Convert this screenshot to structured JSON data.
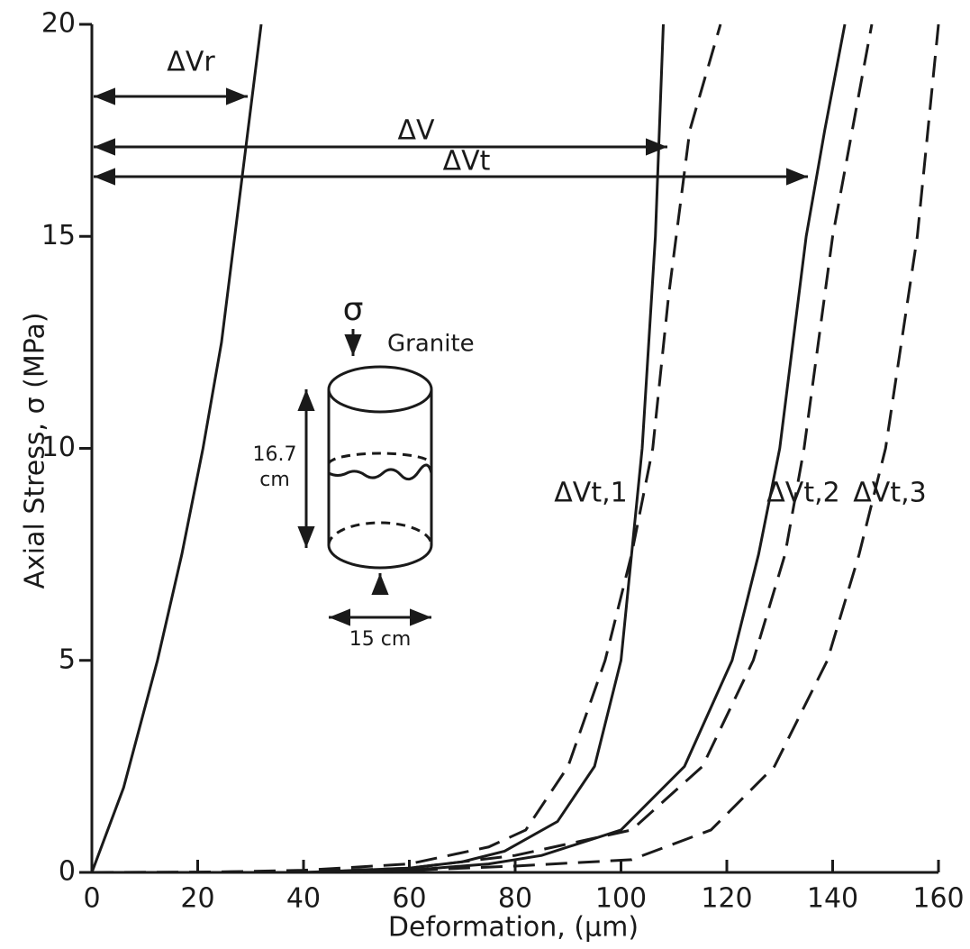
{
  "chart_data": {
    "type": "line",
    "x_label": "Deformation, (μm)",
    "y_label": "Axial Stress, σ (MPa)",
    "xlim": [
      0,
      160
    ],
    "xticks": [
      0,
      20,
      40,
      60,
      80,
      100,
      120,
      140,
      160
    ],
    "ylim": [
      0,
      20
    ],
    "yticks": [
      0,
      5,
      10,
      15,
      20
    ],
    "series": [
      {
        "name": "ΔVr",
        "color": "#1a1a1a",
        "style": "solid",
        "x": [
          0,
          3,
          6,
          12.4,
          17,
          21,
          24.5,
          27,
          29.5,
          32
        ],
        "values": [
          0,
          1,
          2,
          5,
          7.5,
          10,
          12.5,
          15,
          17.5,
          20
        ]
      },
      {
        "name": "ΔV",
        "color": "#1a1a1a",
        "style": "solid",
        "x": [
          40,
          60,
          70,
          78,
          88,
          95,
          100,
          104,
          106.5,
          108
        ],
        "values": [
          0,
          0.1,
          0.25,
          0.5,
          1.2,
          2.5,
          5,
          10,
          15,
          20
        ]
      },
      {
        "name": "ΔVt",
        "color": "#1a1a1a",
        "style": "solid",
        "x": [
          40,
          60,
          75,
          85,
          100,
          112,
          121,
          126,
          130,
          135,
          138.5,
          142.3
        ],
        "values": [
          0,
          0.05,
          0.2,
          0.4,
          1,
          2.5,
          5,
          7.5,
          10,
          15,
          17.5,
          20
        ]
      },
      {
        "name": "ΔVt,1",
        "color": "#1a1a1a",
        "style": "dashed",
        "x": [
          0,
          20,
          40,
          60,
          75,
          82,
          90,
          97,
          102,
          106,
          109,
          113,
          118.8
        ],
        "values": [
          0,
          0,
          0.05,
          0.2,
          0.6,
          1,
          2.5,
          5,
          7.5,
          10,
          13.6,
          17.5,
          20
        ]
      },
      {
        "name": "ΔVt,2",
        "color": "#1a1a1a",
        "style": "dashed",
        "x": [
          0,
          40,
          60,
          80,
          102,
          115.4,
          125,
          131,
          134.6,
          140,
          147.4
        ],
        "values": [
          0,
          0.02,
          0.1,
          0.4,
          1,
          2.5,
          5,
          7.5,
          10,
          15,
          20
        ]
      },
      {
        "name": "ΔVt,3",
        "color": "#1a1a1a",
        "style": "dashed",
        "x": [
          0,
          40,
          60,
          80,
          102,
          117,
          129,
          139,
          145,
          150,
          156,
          160
        ],
        "values": [
          0,
          0,
          0.05,
          0.15,
          0.3,
          1,
          2.5,
          5,
          7.5,
          10,
          15,
          20
        ]
      }
    ]
  },
  "inset": {
    "stress_symbol": "σ",
    "material": "Granite",
    "height_value": "16.7",
    "height_unit": "cm",
    "diameter": "15 cm"
  }
}
